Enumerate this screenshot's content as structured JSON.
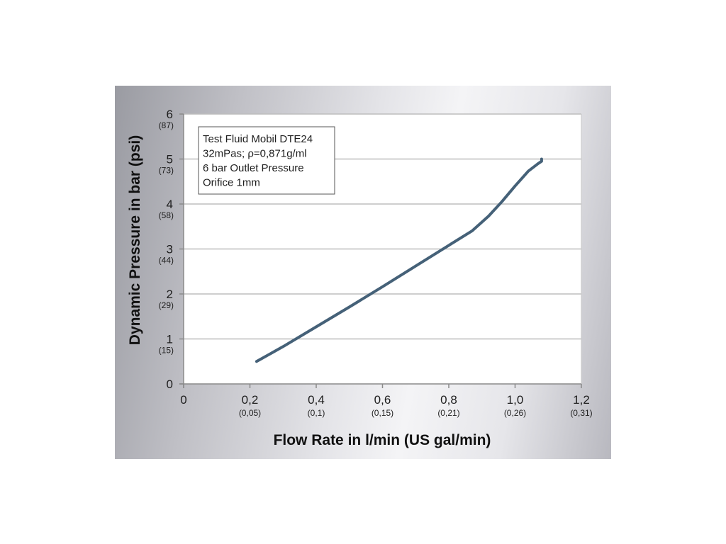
{
  "chart_data": {
    "type": "line",
    "title": "",
    "xlabel": "Flow Rate in l/min (US gal/min)",
    "ylabel": "Dynamic Pressure in bar (psi)",
    "xlim": [
      0,
      1.2
    ],
    "ylim": [
      0,
      6
    ],
    "grid": "horizontal",
    "x_ticks": [
      {
        "value": 0,
        "label": "0",
        "sub": ""
      },
      {
        "value": 0.2,
        "label": "0,2",
        "sub": "(0,05)"
      },
      {
        "value": 0.4,
        "label": "0,4",
        "sub": "(0,1)"
      },
      {
        "value": 0.6,
        "label": "0,6",
        "sub": "(0,15)"
      },
      {
        "value": 0.8,
        "label": "0,8",
        "sub": "(0,21)"
      },
      {
        "value": 1.0,
        "label": "1,0",
        "sub": "(0,26)"
      },
      {
        "value": 1.2,
        "label": "1,2",
        "sub": "(0,31)"
      }
    ],
    "y_ticks": [
      {
        "value": 0,
        "label": "0",
        "sub": ""
      },
      {
        "value": 1,
        "label": "1",
        "sub": "(15)"
      },
      {
        "value": 2,
        "label": "2",
        "sub": "(29)"
      },
      {
        "value": 3,
        "label": "3",
        "sub": "(44)"
      },
      {
        "value": 4,
        "label": "4",
        "sub": "(58)"
      },
      {
        "value": 5,
        "label": "5",
        "sub": "(73)"
      },
      {
        "value": 6,
        "label": "6",
        "sub": "(87)"
      }
    ],
    "annotation": [
      "Test Fluid Mobil DTE24",
      "32mPas; ρ=0,871g/ml",
      "6 bar Outlet Pressure",
      "Orifice 1mm"
    ],
    "series": [
      {
        "color": "#456178",
        "x": [
          0.22,
          0.3,
          0.4,
          0.5,
          0.6,
          0.7,
          0.8,
          0.87,
          0.92,
          0.96,
          1.0,
          1.04,
          1.07,
          1.08,
          1.08
        ],
        "y": [
          0.5,
          0.83,
          1.27,
          1.71,
          2.16,
          2.62,
          3.08,
          3.4,
          3.73,
          4.05,
          4.4,
          4.73,
          4.9,
          4.95,
          5.0
        ]
      }
    ]
  }
}
